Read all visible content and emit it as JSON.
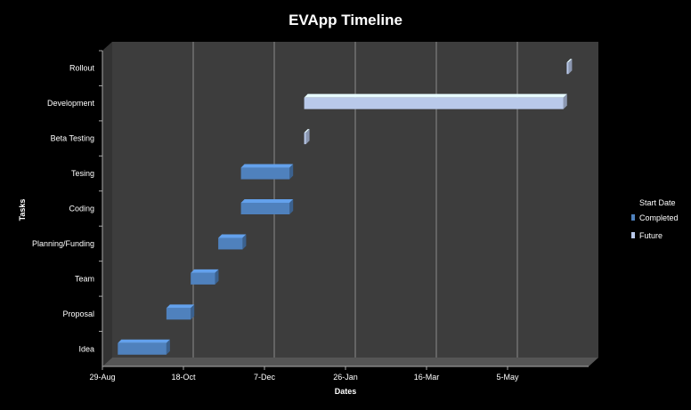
{
  "chart_data": {
    "type": "bar",
    "orientation": "horizontal-gantt",
    "title": "EVApp Timeline",
    "xlabel": "Dates",
    "ylabel": "Tasks",
    "x_ticks": [
      "29-Aug",
      "18-Oct",
      "7-Dec",
      "26-Jan",
      "16-Mar",
      "5-May"
    ],
    "x_tick_dates": [
      "2011-08-29",
      "2011-10-18",
      "2011-12-07",
      "2012-01-26",
      "2012-03-16",
      "2012-05-05"
    ],
    "xlim": [
      "2011-08-29",
      "2012-06-24"
    ],
    "grid": true,
    "legend_title": "Start Date",
    "legend_position": "right",
    "series": [
      {
        "name": "Completed",
        "color": "#4f81bd"
      },
      {
        "name": "Future",
        "color": "#b9c9ea"
      }
    ],
    "categories": [
      "Idea",
      "Proposal",
      "Team",
      "Planning/Funding",
      "Coding",
      "Tesing",
      "Beta Testing",
      "Development",
      "Rollout"
    ],
    "tasks": [
      {
        "name": "Idea",
        "start": "2011-09-02",
        "end": "2011-10-02",
        "series": "Completed"
      },
      {
        "name": "Proposal",
        "start": "2011-10-02",
        "end": "2011-10-17",
        "series": "Completed"
      },
      {
        "name": "Team",
        "start": "2011-10-17",
        "end": "2011-11-01",
        "series": "Completed"
      },
      {
        "name": "Planning/Funding",
        "start": "2011-11-03",
        "end": "2011-11-18",
        "series": "Completed"
      },
      {
        "name": "Coding",
        "start": "2011-11-17",
        "end": "2011-12-17",
        "series": "Completed"
      },
      {
        "name": "Tesing",
        "start": "2011-11-17",
        "end": "2011-12-17",
        "series": "Completed"
      },
      {
        "name": "Beta Testing",
        "start": "2011-12-26",
        "end": "2011-12-27",
        "series": "Future"
      },
      {
        "name": "Development",
        "start": "2011-12-26",
        "end": "2012-06-03",
        "series": "Future"
      },
      {
        "name": "Rollout",
        "start": "2012-06-05",
        "end": "2012-06-06",
        "series": "Future"
      }
    ]
  }
}
